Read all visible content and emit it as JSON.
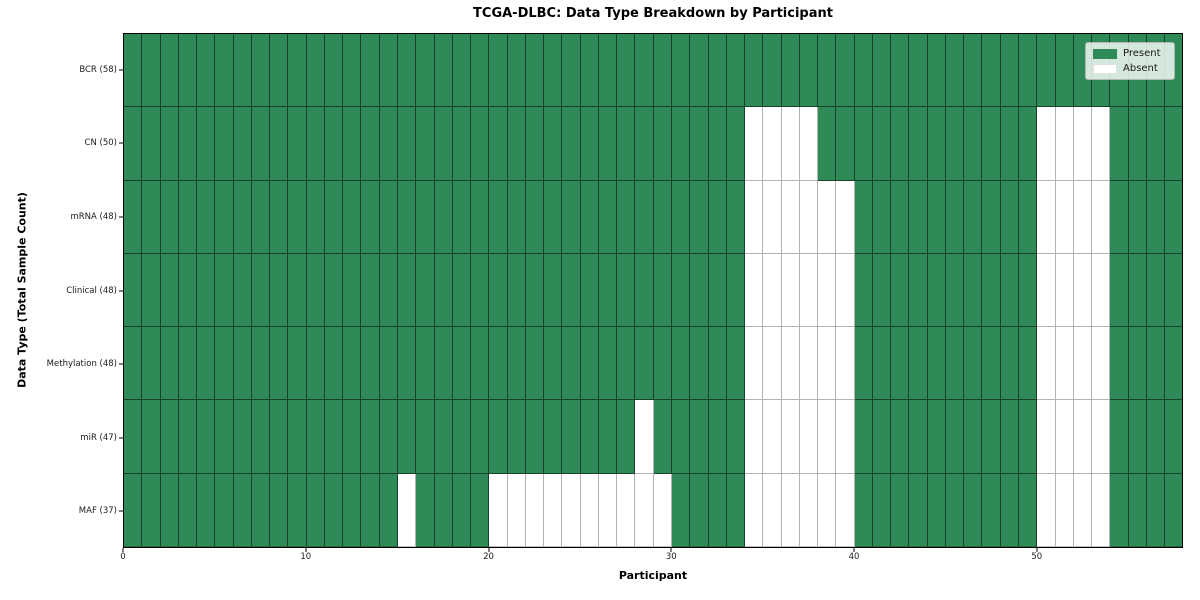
{
  "title": "TCGA-DLBC: Data Type Breakdown by Participant",
  "chart_data": {
    "type": "heatmap",
    "title": "TCGA-DLBC: Data Type Breakdown by Participant",
    "xlabel": "Participant",
    "ylabel": "Data Type (Total Sample Count)",
    "x_ticks": [
      0,
      10,
      20,
      30,
      40,
      50
    ],
    "x_range": [
      0,
      58
    ],
    "n_participants": 58,
    "grid": true,
    "legend_position": "upper right",
    "colors": {
      "present": "#2e8b57",
      "absent": "#ffffff"
    },
    "legend_entries": [
      {
        "label": "Present",
        "state": "present",
        "color": "#2e8b57"
      },
      {
        "label": "Absent",
        "state": "absent",
        "color": "#ffffff"
      }
    ],
    "rows": [
      {
        "label": "BCR (58)",
        "data_type": "BCR",
        "total_samples": 58,
        "absent_participants": []
      },
      {
        "label": "CN (50)",
        "data_type": "CN",
        "total_samples": 50,
        "absent_participants": [
          34,
          35,
          36,
          37,
          50,
          51,
          52,
          53
        ]
      },
      {
        "label": "mRNA (48)",
        "data_type": "mRNA",
        "total_samples": 48,
        "absent_participants": [
          34,
          35,
          36,
          37,
          38,
          39,
          50,
          51,
          52,
          53
        ]
      },
      {
        "label": "Clinical (48)",
        "data_type": "Clinical",
        "total_samples": 48,
        "absent_participants": [
          34,
          35,
          36,
          37,
          38,
          39,
          50,
          51,
          52,
          53
        ]
      },
      {
        "label": "Methylation (48)",
        "data_type": "Methylation",
        "total_samples": 48,
        "absent_participants": [
          34,
          35,
          36,
          37,
          38,
          39,
          50,
          51,
          52,
          53
        ]
      },
      {
        "label": "miR (47)",
        "data_type": "miR",
        "total_samples": 47,
        "absent_participants": [
          28,
          34,
          35,
          36,
          37,
          38,
          39,
          50,
          51,
          52,
          53
        ]
      },
      {
        "label": "MAF (37)",
        "data_type": "MAF",
        "total_samples": 37,
        "absent_participants": [
          15,
          20,
          21,
          22,
          23,
          24,
          25,
          26,
          27,
          28,
          29,
          34,
          35,
          36,
          37,
          38,
          39,
          50,
          51,
          52,
          53
        ]
      }
    ]
  }
}
